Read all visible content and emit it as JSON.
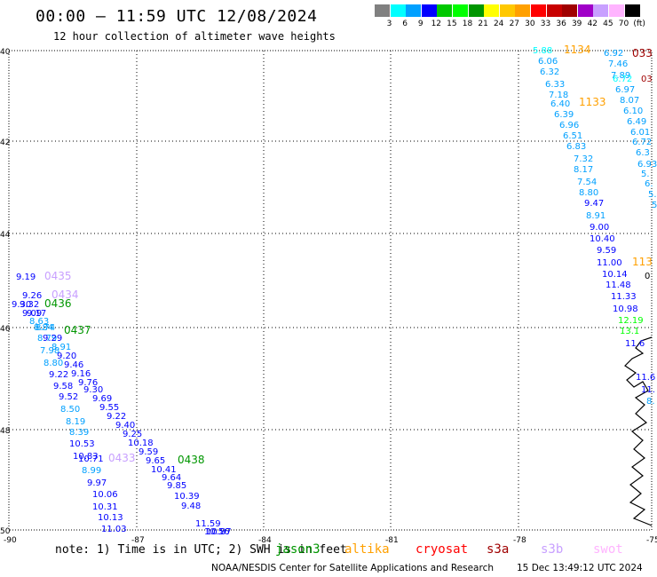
{
  "header": {
    "title": "00:00 – 11:59 UTC 12/08/2024",
    "subtitle": "12 hour collection of altimeter wave heights"
  },
  "legend": {
    "colors": [
      "#808080",
      "#00ffff",
      "#00a0ff",
      "#0000ff",
      "#00c800",
      "#00ff00",
      "#009600",
      "#ffff00",
      "#ffc800",
      "#ffa000",
      "#ff0000",
      "#c80000",
      "#a00000",
      "#a000c8",
      "#c8a0ff",
      "#ffb4ff",
      "#000000"
    ],
    "ticks": [
      "3",
      "6",
      "9",
      "12",
      "15",
      "18",
      "21",
      "24",
      "27",
      "30",
      "33",
      "36",
      "39",
      "42",
      "45",
      "70",
      "(ft)"
    ]
  },
  "axes": {
    "y_labels": [
      "40",
      "42",
      "44",
      "46",
      "48",
      "50"
    ],
    "x_labels": [
      "-90",
      "-87",
      "-84",
      "-81",
      "-78",
      "-75"
    ]
  },
  "labels_west": [
    {
      "t": "9.19",
      "c": "#0000ff"
    },
    {
      "t": "0435",
      "c": "#c8a0ff"
    },
    {
      "t": "9.26",
      "c": "#0000ff"
    },
    {
      "t": "0434",
      "c": "#c8a0ff"
    },
    {
      "t": "9.30",
      "c": "#0000ff"
    },
    {
      "t": "9.32",
      "c": "#0000ff"
    },
    {
      "t": "0436",
      "c": "#009600"
    },
    {
      "t": "9.09",
      "c": "#0000ff"
    },
    {
      "t": "9.17",
      "c": "#0000ff"
    },
    {
      "t": "8.63",
      "c": "#00a0ff"
    },
    {
      "t": "8.84",
      "c": "#00a0ff"
    },
    {
      "t": "8.74",
      "c": "#00a0ff"
    },
    {
      "t": "0437",
      "c": "#009600"
    },
    {
      "t": "8.79",
      "c": "#00a0ff"
    },
    {
      "t": "9.29",
      "c": "#0000ff"
    },
    {
      "t": "8.91",
      "c": "#00a0ff"
    },
    {
      "t": "7.98",
      "c": "#00a0ff"
    },
    {
      "t": "9.20",
      "c": "#0000ff"
    },
    {
      "t": "8.80",
      "c": "#00a0ff"
    },
    {
      "t": "9.46",
      "c": "#0000ff"
    },
    {
      "t": "9.22",
      "c": "#0000ff"
    },
    {
      "t": "9.16",
      "c": "#0000ff"
    },
    {
      "t": "9.58",
      "c": "#0000ff"
    },
    {
      "t": "9.76",
      "c": "#0000ff"
    },
    {
      "t": "9.52",
      "c": "#0000ff"
    },
    {
      "t": "9.30",
      "c": "#0000ff"
    },
    {
      "t": "9.69",
      "c": "#0000ff"
    },
    {
      "t": "8.50",
      "c": "#00a0ff"
    },
    {
      "t": "9.55",
      "c": "#0000ff"
    },
    {
      "t": "8.19",
      "c": "#00a0ff"
    },
    {
      "t": "9.22",
      "c": "#0000ff"
    },
    {
      "t": "8.39",
      "c": "#00a0ff"
    },
    {
      "t": "9.40",
      "c": "#0000ff"
    },
    {
      "t": "9.25",
      "c": "#0000ff"
    },
    {
      "t": "10.53",
      "c": "#0000ff"
    },
    {
      "t": "10.18",
      "c": "#0000ff"
    },
    {
      "t": "10.83",
      "c": "#0000ff"
    },
    {
      "t": "10.71",
      "c": "#0000ff"
    },
    {
      "t": "9.59",
      "c": "#0000ff"
    },
    {
      "t": "0433",
      "c": "#c8a0ff"
    },
    {
      "t": "9.65",
      "c": "#0000ff"
    },
    {
      "t": "0438",
      "c": "#009600"
    },
    {
      "t": "8.99",
      "c": "#00a0ff"
    },
    {
      "t": "10.41",
      "c": "#0000ff"
    },
    {
      "t": "9.97",
      "c": "#0000ff"
    },
    {
      "t": "9.64",
      "c": "#0000ff"
    },
    {
      "t": "10.06",
      "c": "#0000ff"
    },
    {
      "t": "9.85",
      "c": "#0000ff"
    },
    {
      "t": "10.31",
      "c": "#0000ff"
    },
    {
      "t": "10.39",
      "c": "#0000ff"
    },
    {
      "t": "10.13",
      "c": "#0000ff"
    },
    {
      "t": "9.48",
      "c": "#0000ff"
    },
    {
      "t": "11.03",
      "c": "#0000ff"
    },
    {
      "t": "11.59",
      "c": "#0000ff"
    },
    {
      "t": "10.56",
      "c": "#0000ff"
    },
    {
      "t": "10.87",
      "c": "#0000ff"
    }
  ],
  "labels_east": [
    {
      "t": "5.88",
      "c": "#00ffff"
    },
    {
      "t": "1134",
      "c": "#ffa000"
    },
    {
      "t": "6.92",
      "c": "#00a0ff"
    },
    {
      "t": "033",
      "c": "#a00000"
    },
    {
      "t": "6.06",
      "c": "#00a0ff"
    },
    {
      "t": "7.46",
      "c": "#00a0ff"
    },
    {
      "t": "6.32",
      "c": "#00a0ff"
    },
    {
      "t": "7.89",
      "c": "#00a0ff"
    },
    {
      "t": "6.72",
      "c": "#00ffff"
    },
    {
      "t": "03",
      "c": "#a00000"
    },
    {
      "t": "6.33",
      "c": "#00a0ff"
    },
    {
      "t": "6.97",
      "c": "#00a0ff"
    },
    {
      "t": "7.18",
      "c": "#00a0ff"
    },
    {
      "t": "8.07",
      "c": "#00a0ff"
    },
    {
      "t": "6.40",
      "c": "#00a0ff"
    },
    {
      "t": "1133",
      "c": "#ffa000"
    },
    {
      "t": "6.10",
      "c": "#00a0ff"
    },
    {
      "t": "6.39",
      "c": "#00a0ff"
    },
    {
      "t": "6.49",
      "c": "#00a0ff"
    },
    {
      "t": "6.96",
      "c": "#00a0ff"
    },
    {
      "t": "6.01",
      "c": "#00a0ff"
    },
    {
      "t": "6.51",
      "c": "#00a0ff"
    },
    {
      "t": "6.72",
      "c": "#00a0ff"
    },
    {
      "t": "6.83",
      "c": "#00a0ff"
    },
    {
      "t": "6.3",
      "c": "#00a0ff"
    },
    {
      "t": "7.32",
      "c": "#00a0ff"
    },
    {
      "t": "6.93",
      "c": "#00a0ff"
    },
    {
      "t": "8.17",
      "c": "#00a0ff"
    },
    {
      "t": "5.",
      "c": "#00a0ff"
    },
    {
      "t": "7.54",
      "c": "#00a0ff"
    },
    {
      "t": "6.",
      "c": "#00a0ff"
    },
    {
      "t": "8.80",
      "c": "#00a0ff"
    },
    {
      "t": "5.",
      "c": "#00a0ff"
    },
    {
      "t": "9.47",
      "c": "#0000ff"
    },
    {
      "t": "5",
      "c": "#00a0ff"
    },
    {
      "t": "8.91",
      "c": "#00a0ff"
    },
    {
      "t": "9.00",
      "c": "#0000ff"
    },
    {
      "t": "10.40",
      "c": "#0000ff"
    },
    {
      "t": "9.59",
      "c": "#0000ff"
    },
    {
      "t": "11.00",
      "c": "#0000ff"
    },
    {
      "t": "113",
      "c": "#ffa000"
    },
    {
      "t": "10.14",
      "c": "#0000ff"
    },
    {
      "t": "0",
      "c": "#000000"
    },
    {
      "t": "11.48",
      "c": "#0000ff"
    },
    {
      "t": "11.33",
      "c": "#0000ff"
    },
    {
      "t": "10.98",
      "c": "#0000ff"
    },
    {
      "t": "12.19",
      "c": "#00ff00"
    },
    {
      "t": "13.1",
      "c": "#00ff00"
    },
    {
      "t": "11.6",
      "c": "#0000ff"
    },
    {
      "t": "11.6",
      "c": "#0000ff"
    },
    {
      "t": "11.",
      "c": "#0000ff"
    },
    {
      "t": "8.",
      "c": "#00a0ff"
    }
  ],
  "footer": {
    "note": "note: 1) Time is in UTC; 2) SWH is in feet",
    "satellites": [
      {
        "name": "jason3",
        "color": "#009600"
      },
      {
        "name": "altika",
        "color": "#ffa000"
      },
      {
        "name": "cryosat",
        "color": "#ff0000"
      },
      {
        "name": "s3a",
        "color": "#a00000"
      },
      {
        "name": "s3b",
        "color": "#c8a0ff"
      },
      {
        "name": "swot",
        "color": "#ffb4ff"
      }
    ],
    "credit": "NOAA/NESDIS Center for Satellite Applications and Research",
    "timestamp": "15 Dec 13:49:12 UTC 2024"
  }
}
